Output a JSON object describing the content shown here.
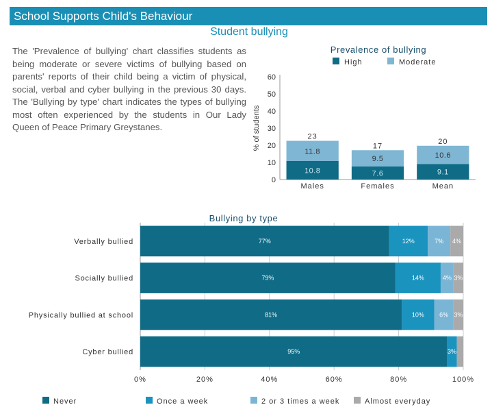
{
  "header": {
    "title": "School Supports Child's Behaviour"
  },
  "section": {
    "title": "Student bullying"
  },
  "intro": {
    "text": "The 'Prevalence of bullying' chart classifies students as being moderate or severe victims of bullying based on parents' reports of their child being a victim of physical, social, verbal and cyber bullying in the previous 30 days. The 'Bullying by type' chart indicates the types of bullying most often experienced by the students in Our Lady Queen of Peace Primary Greystanes."
  },
  "colors": {
    "header_bg": "#1a8fb5",
    "high": "#0f6b86",
    "moderate": "#7fb6d4",
    "never": "#0f6b86",
    "once_a_week": "#1a93bf",
    "two_three": "#7bb5d6",
    "almost_everyday": "#aaaaaa"
  },
  "chart_data": [
    {
      "type": "bar",
      "stacked": true,
      "title": "Prevalence of bullying",
      "ylabel": "% of students",
      "xlabel": "",
      "ylim": [
        0,
        60
      ],
      "yticks": [
        0,
        10,
        20,
        30,
        40,
        50,
        60
      ],
      "categories": [
        "Males",
        "Females",
        "Mean"
      ],
      "series": [
        {
          "name": "High",
          "values": [
            10.8,
            7.6,
            9.1
          ]
        },
        {
          "name": "Moderate",
          "values": [
            11.8,
            9.5,
            10.6
          ]
        }
      ],
      "totals": [
        "23",
        "17",
        "20"
      ],
      "legend": "top",
      "grid": false
    },
    {
      "type": "bar",
      "orientation": "horizontal",
      "stacked": true,
      "title": "Bullying by type",
      "xlim": [
        0,
        100
      ],
      "xticks": [
        "0%",
        "20%",
        "40%",
        "60%",
        "80%",
        "100%"
      ],
      "categories": [
        "Verbally bullied",
        "Socially bullied",
        "Physically bullied at school",
        "Cyber bullied"
      ],
      "series": [
        {
          "name": "Never",
          "values": [
            77,
            79,
            81,
            95
          ],
          "labels": [
            "77%",
            "79%",
            "81%",
            "95%"
          ]
        },
        {
          "name": "Once a week",
          "values": [
            12,
            14,
            10,
            3
          ],
          "labels": [
            "12%",
            "14%",
            "10%",
            "3%"
          ]
        },
        {
          "name": "2 or 3 times a week",
          "values": [
            7,
            4,
            6,
            0
          ],
          "labels": [
            "7%",
            "4%",
            "6%",
            ""
          ]
        },
        {
          "name": "Almost everyday",
          "values": [
            4,
            3,
            3,
            2
          ],
          "labels": [
            "4%",
            "3%",
            "3%",
            ""
          ]
        }
      ],
      "legend": "bottom",
      "grid": true
    }
  ]
}
